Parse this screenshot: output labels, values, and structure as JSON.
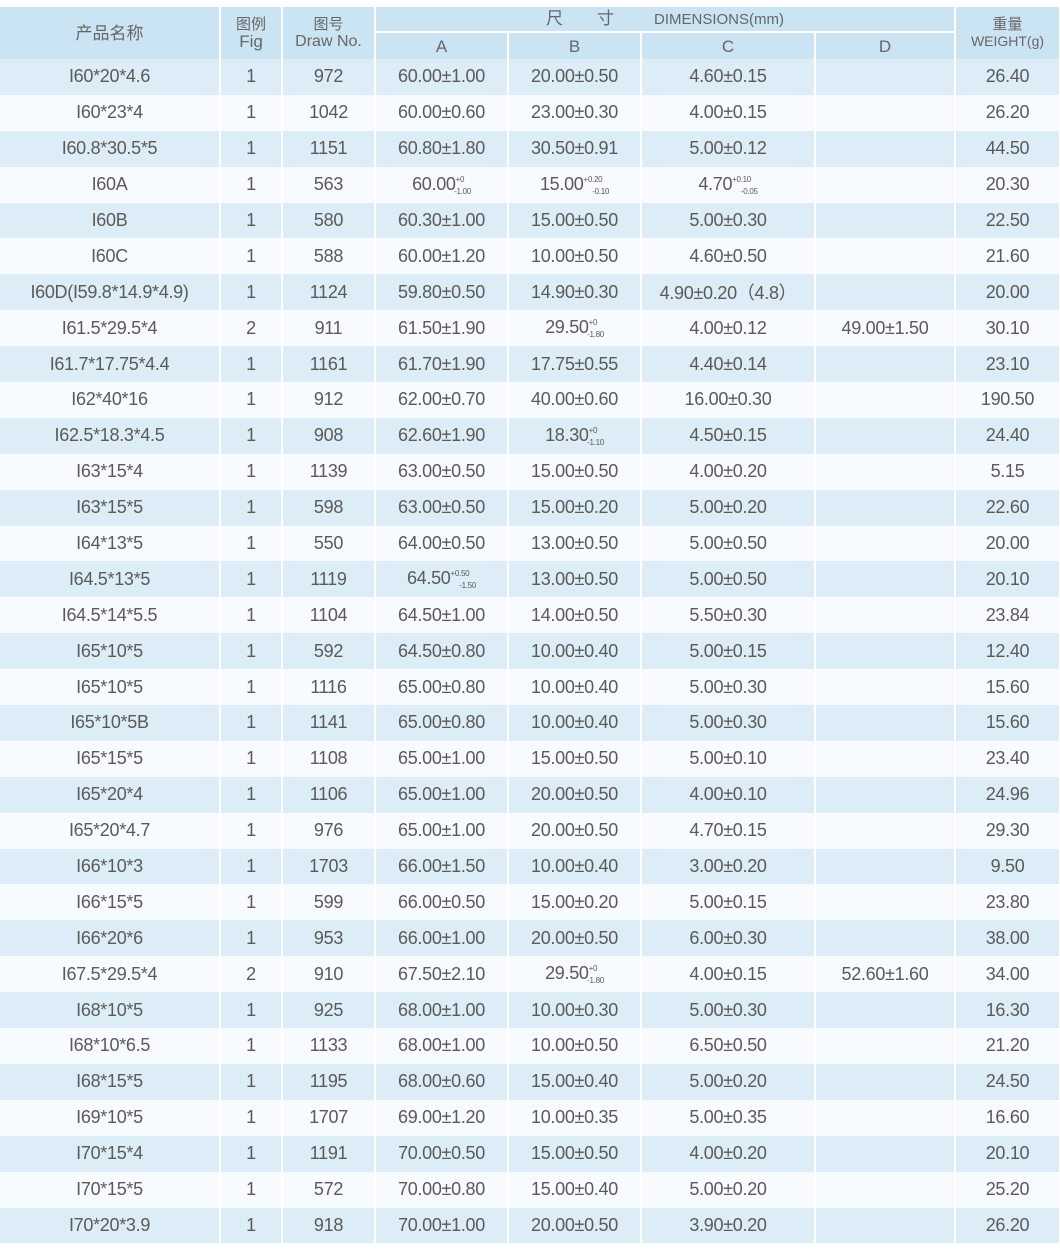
{
  "header": {
    "name": "产品名称",
    "fig_cn": "图例",
    "fig_en": "Fig",
    "draw_cn": "图号",
    "draw_en": "Draw No.",
    "dim_cn": "尺　　寸",
    "dim_en": "DIMENSIONS(mm)",
    "a": "A",
    "b": "B",
    "c": "C",
    "d": "D",
    "weight_cn": "重量",
    "weight_en": "WEIGHT(g)"
  },
  "rows": [
    [
      "I60*20*4.6",
      "1",
      "972",
      "60.00±1.00",
      "20.00±0.50",
      "4.60±0.15",
      "",
      "26.40"
    ],
    [
      "I60*23*4",
      "1",
      "1042",
      "60.00±0.60",
      "23.00±0.30",
      "4.00±0.15",
      "",
      "26.20"
    ],
    [
      "I60.8*30.5*5",
      "1",
      "1151",
      "60.80±1.80",
      "30.50±0.91",
      "5.00±0.12",
      "",
      "44.50"
    ],
    [
      "I60A",
      "1",
      "563",
      {
        "base": "60.00",
        "upper": "+0",
        "lower": "-1.00"
      },
      {
        "base": "15.00",
        "upper": "+0.20",
        "lower": "-0.10"
      },
      {
        "base": "4.70",
        "upper": "+0.10",
        "lower": "-0.05"
      },
      "",
      "20.30"
    ],
    [
      "I60B",
      "1",
      "580",
      "60.30±1.00",
      "15.00±0.50",
      "5.00±0.30",
      "",
      "22.50"
    ],
    [
      "I60C",
      "1",
      "588",
      "60.00±1.20",
      "10.00±0.50",
      "4.60±0.50",
      "",
      "21.60"
    ],
    [
      "I60D(I59.8*14.9*4.9)",
      "1",
      "1124",
      "59.80±0.50",
      "14.90±0.30",
      "4.90±0.20（4.8）",
      "",
      "20.00"
    ],
    [
      "I61.5*29.5*4",
      "2",
      "911",
      "61.50±1.90",
      {
        "base": "29.50",
        "upper": "+0",
        "lower": "-1.80"
      },
      "4.00±0.12",
      "49.00±1.50",
      "30.10"
    ],
    [
      "I61.7*17.75*4.4",
      "1",
      "1161",
      "61.70±1.90",
      "17.75±0.55",
      "4.40±0.14",
      "",
      "23.10"
    ],
    [
      "I62*40*16",
      "1",
      "912",
      "62.00±0.70",
      "40.00±0.60",
      "16.00±0.30",
      "",
      "190.50"
    ],
    [
      "I62.5*18.3*4.5",
      "1",
      "908",
      "62.60±1.90",
      {
        "base": "18.30",
        "upper": "+0",
        "lower": "-1.10"
      },
      "4.50±0.15",
      "",
      "24.40"
    ],
    [
      "I63*15*4",
      "1",
      "1139",
      "63.00±0.50",
      "15.00±0.50",
      "4.00±0.20",
      "",
      "5.15"
    ],
    [
      "I63*15*5",
      "1",
      "598",
      "63.00±0.50",
      "15.00±0.20",
      "5.00±0.20",
      "",
      "22.60"
    ],
    [
      "I64*13*5",
      "1",
      "550",
      "64.00±0.50",
      "13.00±0.50",
      "5.00±0.50",
      "",
      "20.00"
    ],
    [
      "I64.5*13*5",
      "1",
      "1119",
      {
        "base": "64.50",
        "upper": "+0.50",
        "lower": "-1.50"
      },
      "13.00±0.50",
      "5.00±0.50",
      "",
      "20.10"
    ],
    [
      "I64.5*14*5.5",
      "1",
      "1104",
      "64.50±1.00",
      "14.00±0.50",
      "5.50±0.30",
      "",
      "23.84"
    ],
    [
      "I65*10*5",
      "1",
      "592",
      "64.50±0.80",
      "10.00±0.40",
      "5.00±0.15",
      "",
      "12.40"
    ],
    [
      "I65*10*5",
      "1",
      "1116",
      "65.00±0.80",
      "10.00±0.40",
      "5.00±0.30",
      "",
      "15.60"
    ],
    [
      "I65*10*5B",
      "1",
      "1141",
      "65.00±0.80",
      "10.00±0.40",
      "5.00±0.30",
      "",
      "15.60"
    ],
    [
      "I65*15*5",
      "1",
      "1108",
      "65.00±1.00",
      "15.00±0.50",
      "5.00±0.10",
      "",
      "23.40"
    ],
    [
      "I65*20*4",
      "1",
      "1106",
      "65.00±1.00",
      "20.00±0.50",
      "4.00±0.10",
      "",
      "24.96"
    ],
    [
      "I65*20*4.7",
      "1",
      "976",
      "65.00±1.00",
      "20.00±0.50",
      "4.70±0.15",
      "",
      "29.30"
    ],
    [
      "I66*10*3",
      "1",
      "1703",
      "66.00±1.50",
      "10.00±0.40",
      "3.00±0.20",
      "",
      "9.50"
    ],
    [
      "I66*15*5",
      "1",
      "599",
      "66.00±0.50",
      "15.00±0.20",
      "5.00±0.15",
      "",
      "23.80"
    ],
    [
      "I66*20*6",
      "1",
      "953",
      "66.00±1.00",
      "20.00±0.50",
      "6.00±0.30",
      "",
      "38.00"
    ],
    [
      "I67.5*29.5*4",
      "2",
      "910",
      "67.50±2.10",
      {
        "base": "29.50",
        "upper": "+0",
        "lower": "-1.80"
      },
      "4.00±0.15",
      "52.60±1.60",
      "34.00"
    ],
    [
      "I68*10*5",
      "1",
      "925",
      "68.00±1.00",
      "10.00±0.30",
      "5.00±0.30",
      "",
      "16.30"
    ],
    [
      "I68*10*6.5",
      "1",
      "1133",
      "68.00±1.00",
      "10.00±0.50",
      "6.50±0.50",
      "",
      "21.20"
    ],
    [
      "I68*15*5",
      "1",
      "1195",
      "68.00±0.60",
      "15.00±0.40",
      "5.00±0.20",
      "",
      "24.50"
    ],
    [
      "I69*10*5",
      "1",
      "1707",
      "69.00±1.20",
      "10.00±0.35",
      "5.00±0.35",
      "",
      "16.60"
    ],
    [
      "I70*15*4",
      "1",
      "1191",
      "70.00±0.50",
      "15.00±0.50",
      "4.00±0.20",
      "",
      "20.10"
    ],
    [
      "I70*15*5",
      "1",
      "572",
      "70.00±0.80",
      "15.00±0.40",
      "5.00±0.20",
      "",
      "25.20"
    ],
    [
      "I70*20*3.9",
      "1",
      "918",
      "70.00±1.00",
      "20.00±0.50",
      "3.90±0.20",
      "",
      "26.20"
    ]
  ]
}
